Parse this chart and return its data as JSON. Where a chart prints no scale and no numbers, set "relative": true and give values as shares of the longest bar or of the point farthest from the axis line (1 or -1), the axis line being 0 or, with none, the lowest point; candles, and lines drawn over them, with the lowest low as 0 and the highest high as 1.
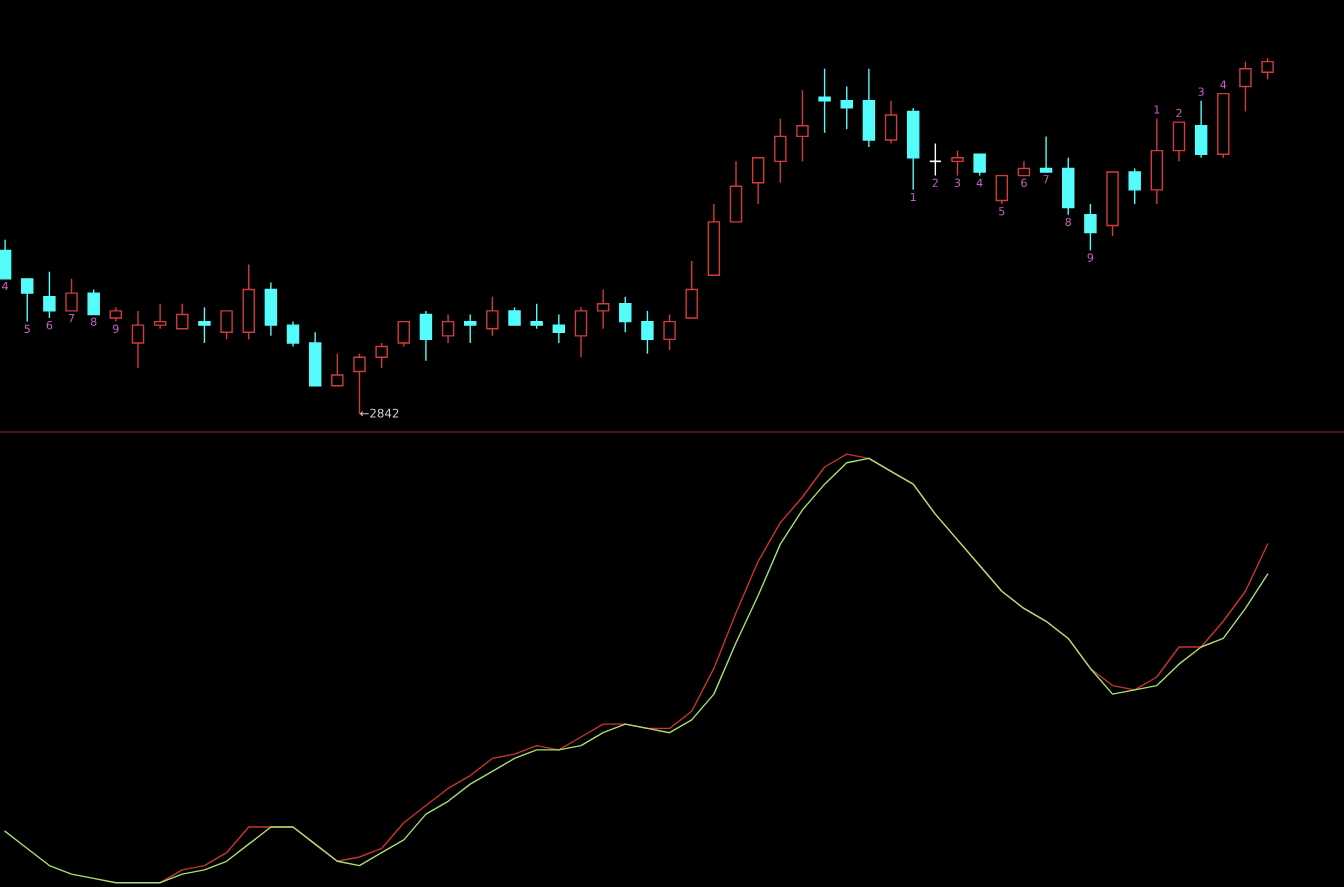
{
  "chart_data": [
    {
      "type": "candlestick",
      "relative": true,
      "categories": [
        null,
        null,
        null,
        null,
        null,
        null,
        null,
        null,
        null,
        null,
        null,
        null,
        null,
        null,
        null,
        null,
        null,
        null,
        null,
        null,
        null,
        null,
        null,
        null,
        null,
        null,
        null,
        null,
        null,
        null,
        null,
        null,
        null,
        null,
        null,
        null,
        null,
        null,
        null,
        null,
        null,
        null,
        null,
        null,
        null,
        null,
        null,
        null,
        null,
        null,
        null,
        null,
        null,
        null,
        null,
        null,
        null,
        null
      ],
      "ohlc": [
        [
          0.46,
          0.49,
          0.38,
          0.38
        ],
        [
          0.38,
          0.38,
          0.26,
          0.34
        ],
        [
          0.33,
          0.4,
          0.27,
          0.29
        ],
        [
          0.29,
          0.38,
          0.29,
          0.34
        ],
        [
          0.34,
          0.35,
          0.28,
          0.28
        ],
        [
          0.27,
          0.3,
          0.26,
          0.29
        ],
        [
          0.2,
          0.29,
          0.13,
          0.25
        ],
        [
          0.25,
          0.31,
          0.24,
          0.26
        ],
        [
          0.24,
          0.31,
          0.24,
          0.28
        ],
        [
          0.26,
          0.3,
          0.2,
          0.25
        ],
        [
          0.23,
          0.29,
          0.21,
          0.29
        ],
        [
          0.23,
          0.42,
          0.21,
          0.35
        ],
        [
          0.35,
          0.37,
          0.22,
          0.25
        ],
        [
          0.25,
          0.26,
          0.19,
          0.2
        ],
        [
          0.2,
          0.23,
          0.08,
          0.08
        ],
        [
          0.08,
          0.17,
          0.08,
          0.11
        ],
        [
          0.12,
          0.17,
          0.0,
          0.16
        ],
        [
          0.16,
          0.2,
          0.13,
          0.19
        ],
        [
          0.2,
          0.26,
          0.19,
          0.26
        ],
        [
          0.28,
          0.29,
          0.15,
          0.21
        ],
        [
          0.22,
          0.28,
          0.2,
          0.26
        ],
        [
          0.26,
          0.28,
          0.2,
          0.25
        ],
        [
          0.24,
          0.33,
          0.22,
          0.29
        ],
        [
          0.29,
          0.3,
          0.25,
          0.25
        ],
        [
          0.26,
          0.31,
          0.24,
          0.25
        ],
        [
          0.25,
          0.28,
          0.2,
          0.23
        ],
        [
          0.22,
          0.3,
          0.16,
          0.29
        ],
        [
          0.29,
          0.35,
          0.24,
          0.31
        ],
        [
          0.31,
          0.33,
          0.23,
          0.26
        ],
        [
          0.26,
          0.29,
          0.17,
          0.21
        ],
        [
          0.21,
          0.28,
          0.18,
          0.26
        ],
        [
          0.27,
          0.43,
          0.27,
          0.35
        ],
        [
          0.39,
          0.59,
          0.39,
          0.54
        ],
        [
          0.54,
          0.71,
          0.54,
          0.64
        ],
        [
          0.65,
          0.72,
          0.59,
          0.72
        ],
        [
          0.71,
          0.83,
          0.65,
          0.78
        ],
        [
          0.78,
          0.91,
          0.71,
          0.81
        ],
        [
          0.89,
          0.97,
          0.79,
          0.88
        ],
        [
          0.88,
          0.92,
          0.8,
          0.86
        ],
        [
          0.88,
          0.97,
          0.75,
          0.77
        ],
        [
          0.77,
          0.88,
          0.76,
          0.84
        ],
        [
          0.85,
          0.86,
          0.63,
          0.72
        ],
        [
          0.71,
          0.76,
          0.67,
          0.71
        ],
        [
          0.71,
          0.74,
          0.67,
          0.72
        ],
        [
          0.73,
          0.73,
          0.67,
          0.68
        ],
        [
          0.6,
          0.67,
          0.59,
          0.67
        ],
        [
          0.67,
          0.71,
          0.67,
          0.69
        ],
        [
          0.69,
          0.78,
          0.68,
          0.68
        ],
        [
          0.69,
          0.72,
          0.56,
          0.58
        ],
        [
          0.56,
          0.59,
          0.46,
          0.51
        ],
        [
          0.53,
          0.68,
          0.5,
          0.68
        ],
        [
          0.68,
          0.69,
          0.59,
          0.63
        ],
        [
          0.63,
          0.83,
          0.59,
          0.74
        ],
        [
          0.74,
          0.82,
          0.71,
          0.82
        ],
        [
          0.81,
          0.88,
          0.72,
          0.73
        ],
        [
          0.73,
          0.9,
          0.72,
          0.9
        ],
        [
          0.92,
          0.99,
          0.85,
          0.97
        ],
        [
          0.96,
          1.0,
          0.94,
          0.99
        ]
      ],
      "colors": [
        "#54fcfc",
        "#54fcfc",
        "#54fcfc",
        "#d23c3c",
        "#54fcfc",
        "#d23c3c",
        "#d23c3c",
        "#d23c3c",
        "#d23c3c",
        "#54fcfc",
        "#d23c3c",
        "#d23c3c",
        "#54fcfc",
        "#54fcfc",
        "#54fcfc",
        "#d23c3c",
        "#d23c3c",
        "#d23c3c",
        "#d23c3c",
        "#54fcfc",
        "#d23c3c",
        "#54fcfc",
        "#d23c3c",
        "#54fcfc",
        "#54fcfc",
        "#54fcfc",
        "#d23c3c",
        "#d23c3c",
        "#54fcfc",
        "#54fcfc",
        "#d23c3c",
        "#d23c3c",
        "#d23c3c",
        "#d23c3c",
        "#d23c3c",
        "#d23c3c",
        "#d23c3c",
        "#54fcfc",
        "#54fcfc",
        "#54fcfc",
        "#d23c3c",
        "#54fcfc",
        "#ffffff",
        "#d23c3c",
        "#54fcfc",
        "#d23c3c",
        "#d23c3c",
        "#54fcfc",
        "#54fcfc",
        "#54fcfc",
        "#d23c3c",
        "#54fcfc",
        "#d23c3c",
        "#d23c3c",
        "#54fcfc",
        "#d23c3c",
        "#d23c3c",
        "#d23c3c"
      ],
      "value_labels": [
        "4",
        "5",
        "6",
        "7",
        "8",
        "9",
        null,
        null,
        null,
        null,
        null,
        null,
        null,
        null,
        null,
        null,
        null,
        null,
        null,
        null,
        null,
        null,
        null,
        null,
        null,
        null,
        null,
        null,
        null,
        null,
        null,
        null,
        null,
        null,
        null,
        null,
        null,
        null,
        null,
        null,
        null,
        "1",
        "2",
        "3",
        "4",
        "5",
        "6",
        "7",
        "8",
        "9",
        null,
        null,
        "1",
        "2",
        "3",
        "4",
        null,
        null
      ],
      "annotations": [
        "←2842"
      ]
    },
    {
      "type": "line",
      "relative": true,
      "categories": [
        null,
        null,
        null,
        null,
        null,
        null,
        null,
        null,
        null,
        null,
        null,
        null,
        null,
        null,
        null,
        null,
        null,
        null,
        null,
        null,
        null,
        null,
        null,
        null,
        null,
        null,
        null,
        null,
        null,
        null,
        null,
        null,
        null,
        null,
        null,
        null,
        null,
        null,
        null,
        null,
        null,
        null,
        null,
        null,
        null,
        null,
        null,
        null,
        null,
        null,
        null,
        null,
        null,
        null,
        null,
        null,
        null,
        null
      ],
      "series": [
        {
          "color": "#c8342f",
          "values": [
            null,
            null,
            null,
            null,
            null,
            null,
            null,
            0.0,
            0.03,
            0.04,
            0.07,
            0.13,
            0.13,
            0.13,
            0.09,
            0.05,
            0.06,
            0.08,
            0.14,
            0.18,
            0.22,
            0.25,
            0.29,
            0.3,
            0.32,
            0.31,
            0.34,
            0.37,
            0.37,
            0.36,
            0.36,
            0.4,
            0.5,
            0.63,
            0.75,
            0.84,
            0.9,
            0.97,
            1.0,
            0.99,
            0.96,
            0.93,
            0.86,
            0.8,
            0.74,
            0.68,
            0.64,
            0.61,
            0.57,
            0.5,
            0.46,
            0.45,
            0.48,
            0.55,
            0.55,
            0.61,
            0.68,
            0.79
          ]
        },
        {
          "color": "#a8e070",
          "values": [
            0.12,
            0.08,
            0.04,
            0.02,
            0.01,
            0.0,
            0.0,
            0.0,
            0.02,
            0.03,
            0.05,
            0.09,
            0.13,
            0.13,
            0.09,
            0.05,
            0.04,
            0.07,
            0.1,
            0.16,
            0.19,
            0.23,
            0.26,
            0.29,
            0.31,
            0.31,
            0.32,
            0.35,
            0.37,
            0.36,
            0.35,
            0.38,
            0.44,
            0.56,
            0.67,
            0.79,
            0.87,
            0.93,
            0.98,
            0.99,
            0.96,
            0.93,
            0.86,
            0.8,
            0.74,
            0.68,
            0.64,
            0.61,
            0.57,
            0.5,
            0.44,
            0.45,
            0.46,
            0.51,
            0.55,
            0.57,
            0.64,
            0.72
          ]
        }
      ]
    }
  ]
}
